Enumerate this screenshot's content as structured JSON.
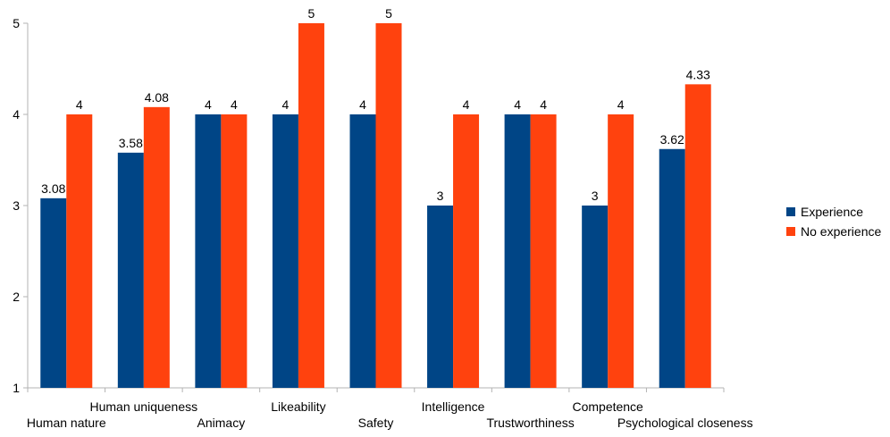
{
  "chart_data": {
    "type": "bar",
    "categories": [
      "Human nature",
      "Human uniqueness",
      "Animacy",
      "Likeability",
      "Safety",
      "Intelligence",
      "Trustworthiness",
      "Competence",
      "Psychological closeness"
    ],
    "series": [
      {
        "name": "Experience",
        "color": "#004586",
        "values": [
          3.08,
          3.58,
          4,
          4,
          4,
          3,
          4,
          3,
          3.62
        ],
        "labels": [
          "3.08",
          "3.58",
          "4",
          "4",
          "4",
          "3",
          "4",
          "3",
          "3.62"
        ]
      },
      {
        "name": "No experience",
        "color": "#ff420e",
        "values": [
          4,
          4.08,
          4,
          5,
          5,
          4,
          4,
          4,
          4.33
        ],
        "labels": [
          "4",
          "4.08",
          "4",
          "5",
          "5",
          "4",
          "4",
          "4",
          "4.33"
        ]
      }
    ],
    "ylim": [
      1,
      5
    ],
    "yticks": [
      "1",
      "2",
      "3",
      "4",
      "5"
    ],
    "grid": false,
    "legend_position": "right",
    "title": "",
    "xlabel": "",
    "ylabel": ""
  }
}
